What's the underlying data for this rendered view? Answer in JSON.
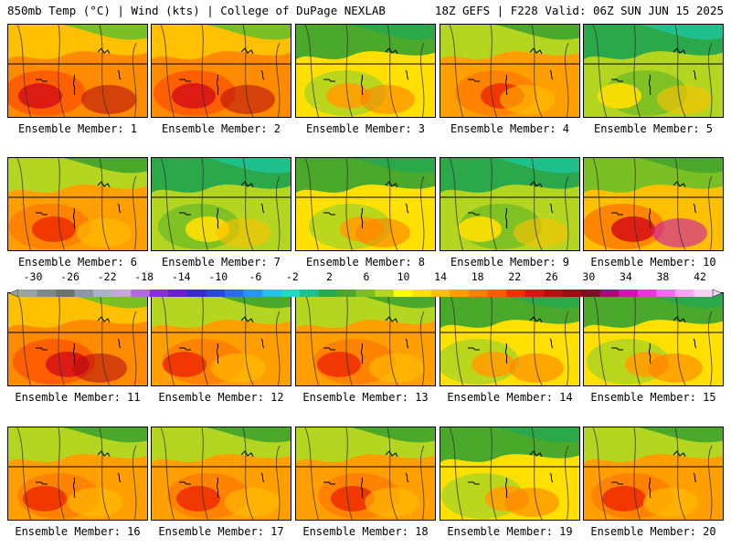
{
  "header": {
    "left": "850mb Temp (°C) | Wind (kts) | College of DuPage NEXLAB",
    "right": "18Z GEFS | F228 Valid: 06Z SUN JUN 15 2025"
  },
  "members": [
    {
      "label": "Ensemble Member: 1",
      "theme": "hot"
    },
    {
      "label": "Ensemble Member: 2",
      "theme": "hot"
    },
    {
      "label": "Ensemble Member: 3",
      "theme": "mixed"
    },
    {
      "label": "Ensemble Member: 4",
      "theme": "warm"
    },
    {
      "label": "Ensemble Member: 5",
      "theme": "cool"
    },
    {
      "label": "Ensemble Member: 6",
      "theme": "warm"
    },
    {
      "label": "Ensemble Member: 7",
      "theme": "cool"
    },
    {
      "label": "Ensemble Member: 8",
      "theme": "mixed"
    },
    {
      "label": "Ensemble Member: 9",
      "theme": "cool"
    },
    {
      "label": "Ensemble Member: 10",
      "theme": "hotspot"
    },
    {
      "label": "Ensemble Member: 11",
      "theme": "hot"
    },
    {
      "label": "Ensemble Member: 12",
      "theme": "warm"
    },
    {
      "label": "Ensemble Member: 13",
      "theme": "warm"
    },
    {
      "label": "Ensemble Member: 14",
      "theme": "mixed"
    },
    {
      "label": "Ensemble Member: 15",
      "theme": "mixed"
    },
    {
      "label": "Ensemble Member: 16",
      "theme": "warm"
    },
    {
      "label": "Ensemble Member: 17",
      "theme": "warm"
    },
    {
      "label": "Ensemble Member: 18",
      "theme": "warm"
    },
    {
      "label": "Ensemble Member: 19",
      "theme": "mixed"
    },
    {
      "label": "Ensemble Member: 20",
      "theme": "warm"
    }
  ],
  "colorbar": {
    "ticks": [
      "-30",
      "-26",
      "-22",
      "-18",
      "-14",
      "-10",
      "-6",
      "-2",
      "2",
      "6",
      "10",
      "14",
      "18",
      "22",
      "26",
      "30",
      "34",
      "38",
      "42"
    ],
    "colors": [
      "#9aa49a",
      "#7f8a80",
      "#6a746b",
      "#8e97a3",
      "#aab4c8",
      "#c7a6d9",
      "#b36bd1",
      "#8a2fcf",
      "#6a20c8",
      "#3a2ac9",
      "#2a48d6",
      "#2a6ee0",
      "#2a98ea",
      "#22c3e6",
      "#20d9c2",
      "#1fc08c",
      "#2aa84a",
      "#4aa82a",
      "#7ac024",
      "#b4d620",
      "#ffff00",
      "#ffe000",
      "#ffc000",
      "#ffa000",
      "#ff8000",
      "#ff5a00",
      "#f03000",
      "#d81414",
      "#b80f0f",
      "#981010",
      "#7a1020",
      "#a0107a",
      "#c817b0",
      "#e03adc",
      "#f06cf0",
      "#f5a8f5",
      "#f8d0f8"
    ]
  }
}
